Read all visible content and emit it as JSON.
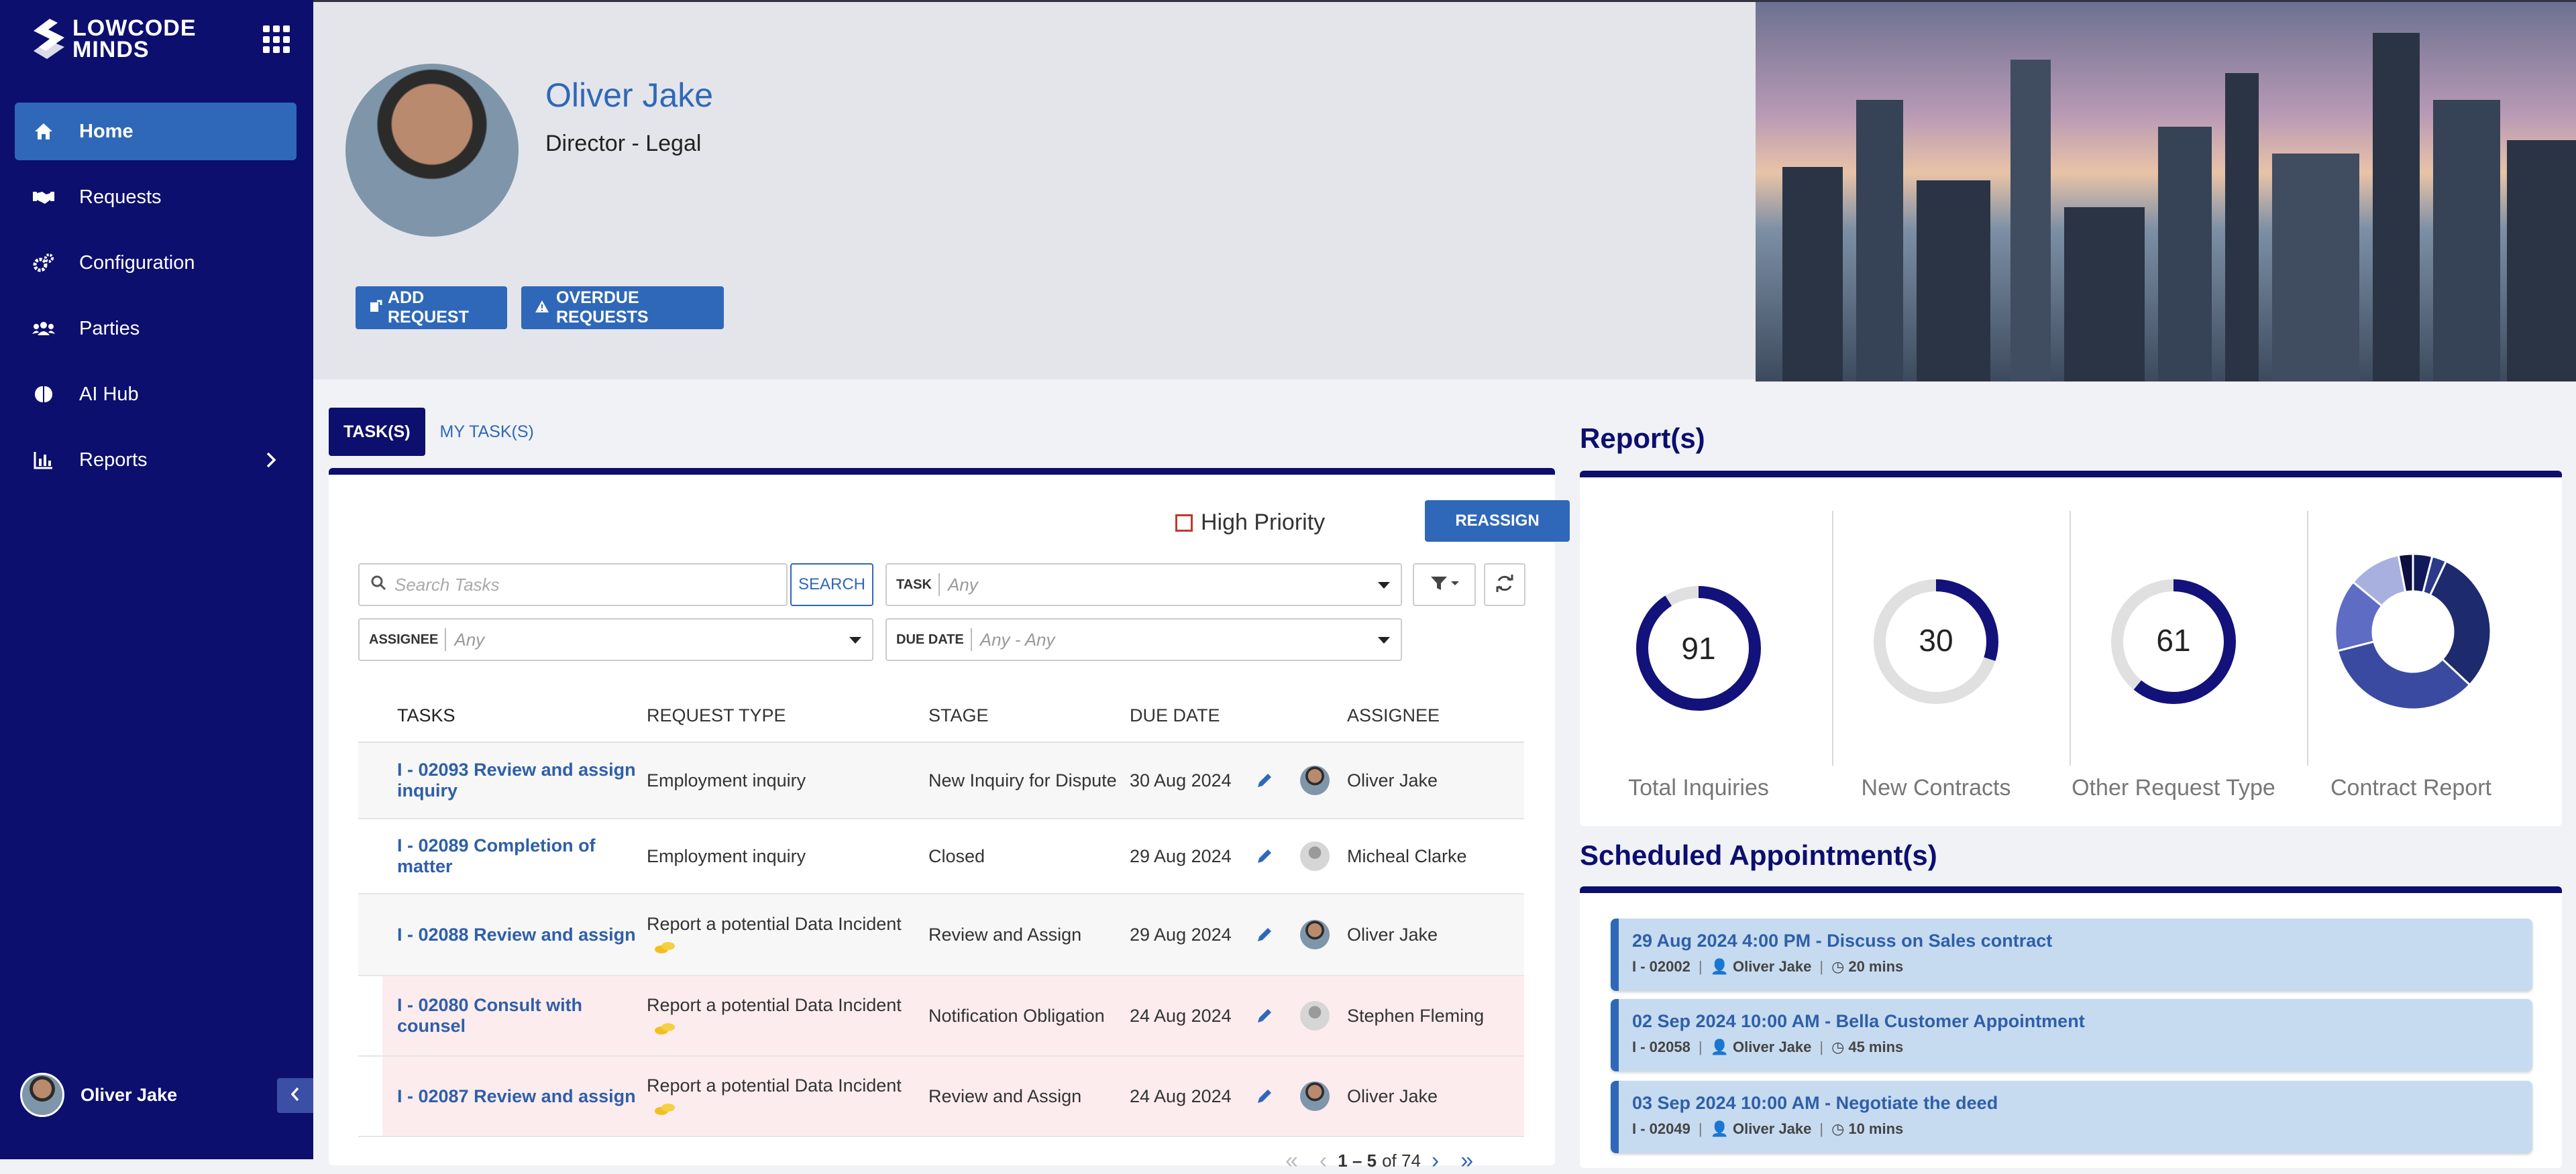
{
  "brand": {
    "line1": "LOWCODE",
    "line2": "MINDS"
  },
  "colors": {
    "sidebar": "#0c0f6e",
    "accent": "#2f68b8",
    "ring": "#12127a",
    "ring_track": "#e0e0e0",
    "pink_row": "#fdecee",
    "appt_bg": "#c6dbf0"
  },
  "sidebar": {
    "items": [
      {
        "label": "Home",
        "icon": "home-icon"
      },
      {
        "label": "Requests",
        "icon": "handshake-icon"
      },
      {
        "label": "Configuration",
        "icon": "cogs-icon"
      },
      {
        "label": "Parties",
        "icon": "users-icon"
      },
      {
        "label": "AI Hub",
        "icon": "brain-icon"
      },
      {
        "label": "Reports",
        "icon": "bar-chart-icon"
      }
    ],
    "user": "Oliver Jake"
  },
  "profile": {
    "name": "Oliver Jake",
    "title": "Director - Legal"
  },
  "header_buttons": {
    "add_request": "ADD REQUEST",
    "overdue_requests": "OVERDUE REQUESTS"
  },
  "tabs": [
    "TASK(S)",
    "MY TASK(S)"
  ],
  "tasks": {
    "high_priority": "High Priority",
    "reassign": "REASSIGN",
    "search_placeholder": "Search Tasks",
    "search_button": "SEARCH",
    "filters": {
      "task": {
        "label": "TASK",
        "value": "Any"
      },
      "assignee": {
        "label": "ASSIGNEE",
        "value": "Any"
      },
      "due_date": {
        "label": "DUE DATE",
        "value": "Any - Any"
      }
    },
    "columns": [
      "TASKS",
      "REQUEST TYPE",
      "STAGE",
      "DUE DATE",
      "ASSIGNEE"
    ],
    "rows": [
      {
        "task": "I - 02093 Review and assign inquiry",
        "type": "Employment inquiry",
        "stage": "New Inquiry for Dispute",
        "due": "30 Aug 2024",
        "assignee": "Oliver Jake"
      },
      {
        "task": "I - 02089 Completion of matter",
        "type": "Employment inquiry",
        "stage": "Closed",
        "due": "29 Aug 2024",
        "assignee": "Micheal Clarke"
      },
      {
        "task": "I - 02088 Review and assign",
        "type": "Report a potential Data Incident",
        "stage": "Review and Assign",
        "due": "29 Aug 2024",
        "assignee": "Oliver Jake"
      },
      {
        "task": "I - 02080 Consult with counsel",
        "type": "Report a potential Data Incident",
        "stage": "Notification Obligation",
        "due": "24 Aug 2024",
        "assignee": "Stephen Fleming"
      },
      {
        "task": "I - 02087 Review and assign",
        "type": "Report a potential Data Incident",
        "stage": "Review and Assign",
        "due": "24 Aug 2024",
        "assignee": "Oliver Jake"
      }
    ],
    "pager": {
      "range": "1 – 5",
      "of": "of 74"
    }
  },
  "reports": {
    "title": "Report(s)",
    "kpis": [
      {
        "value": "91",
        "label": "Total Inquiries",
        "fill": 0.91
      },
      {
        "value": "30",
        "label": "New Contracts",
        "fill": 0.3
      },
      {
        "value": "61",
        "label": "Other Request Type",
        "fill": 0.61
      }
    ],
    "contract_report": {
      "label": "Contract Report",
      "slices": [
        0.04,
        0.03,
        0.3,
        0.34,
        0.15,
        0.11,
        0.03
      ],
      "colors": [
        "#101a5a",
        "#2b3a8a",
        "#1e2a6e",
        "#3a4aa0",
        "#5f6cc4",
        "#a8b0e0",
        "#0c0f40"
      ]
    }
  },
  "appointments": {
    "title": "Scheduled Appointment(s)",
    "items": [
      {
        "title": "29 Aug 2024 4:00 PM - Discuss on Sales contract",
        "id": "I - 02002",
        "person": "Oliver Jake",
        "duration": "20 mins"
      },
      {
        "title": "02 Sep 2024 10:00 AM - Bella Customer Appointment",
        "id": "I - 02058",
        "person": "Oliver Jake",
        "duration": "45 mins"
      },
      {
        "title": "03 Sep 2024 10:00 AM - Negotiate the deed",
        "id": "I - 02049",
        "person": "Oliver Jake",
        "duration": "10 mins"
      }
    ]
  }
}
